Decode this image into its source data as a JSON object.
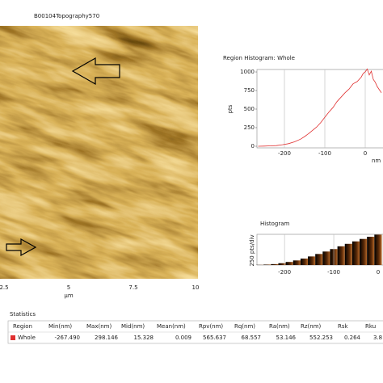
{
  "image": {
    "title": "B00104Topography570",
    "xticks": [
      "2.5",
      "5",
      "7.5",
      "10"
    ],
    "xlabel": "µm"
  },
  "region_histogram": {
    "type": "line",
    "title": "Region Histogram: Whole",
    "ylabel": "pts",
    "xlabel": "nm",
    "color": "#e03030",
    "x": [
      -265,
      -250,
      -235,
      -220,
      -205,
      -190,
      -175,
      -160,
      -150,
      -140,
      -130,
      -120,
      -110,
      -100,
      -90,
      -80,
      -70,
      -60,
      -50,
      -40,
      -30,
      -20,
      -10,
      -5,
      0,
      5,
      10,
      15,
      20,
      25,
      30,
      35,
      40
    ],
    "values": [
      0,
      2,
      5,
      8,
      20,
      35,
      60,
      95,
      130,
      170,
      215,
      260,
      320,
      390,
      460,
      520,
      600,
      660,
      720,
      770,
      840,
      870,
      930,
      980,
      1000,
      1040,
      960,
      1010,
      900,
      860,
      800,
      760,
      720
    ],
    "xlim": [
      -268,
      44
    ],
    "ylim": [
      -22,
      1033
    ],
    "xticks": [
      -200,
      -100,
      0
    ],
    "yticks": [
      0,
      250,
      500,
      750,
      1000
    ],
    "grid": true
  },
  "histogram": {
    "type": "bar",
    "title": "Histogram",
    "ylabel": "250 pts/div",
    "x": [
      -250,
      -235,
      -220,
      -205,
      -190,
      -175,
      -160,
      -145,
      -130,
      -115,
      -100,
      -85,
      -70,
      -55,
      -40,
      -25,
      -10
    ],
    "values": [
      5,
      15,
      30,
      60,
      100,
      150,
      210,
      280,
      360,
      440,
      520,
      610,
      690,
      770,
      850,
      920,
      990
    ],
    "xlim": [
      -256,
      0
    ],
    "ylim": [
      0,
      1000
    ],
    "xticks": [
      -200,
      -100,
      0
    ],
    "grid": true
  },
  "statistics": {
    "title": "Statistics",
    "columns": [
      "Region",
      "Min(nm)",
      "Max(nm)",
      "Mid(nm)",
      "Mean(nm)",
      "Rpv(nm)",
      "Rq(nm)",
      "Ra(nm)",
      "Rz(nm)",
      "Rsk",
      "Rku"
    ],
    "rows": [
      [
        "Whole",
        "-267.490",
        "298.146",
        "15.328",
        "0.009",
        "565.637",
        "68.557",
        "53.146",
        "552.253",
        "0.264",
        "3.8"
      ]
    ]
  }
}
